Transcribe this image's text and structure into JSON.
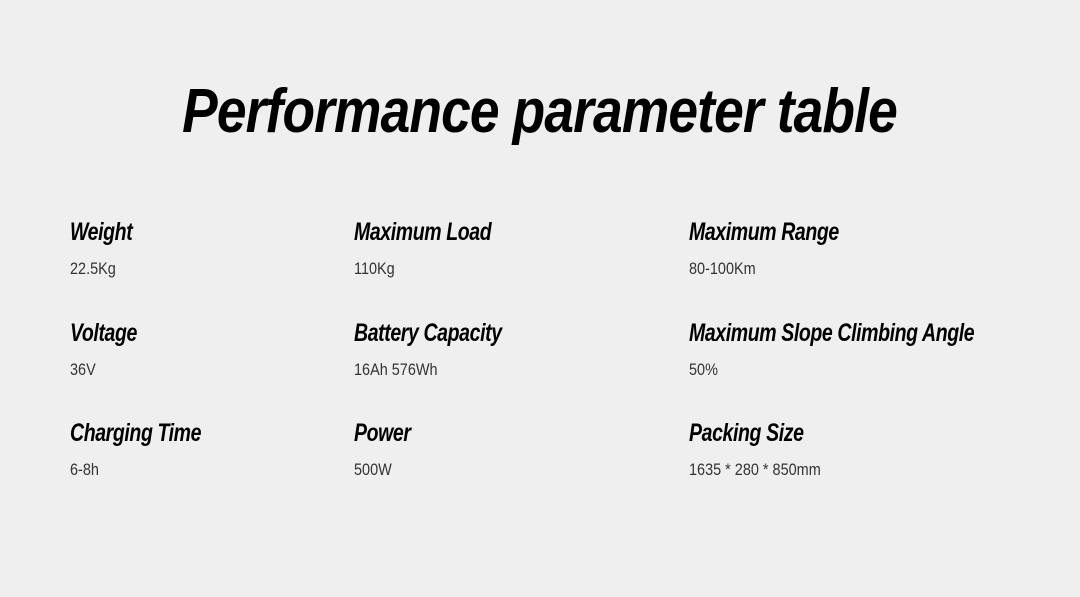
{
  "title": "Performance parameter table",
  "params": [
    {
      "label": "Weight",
      "value": "22.5Kg"
    },
    {
      "label": "Maximum Load",
      "value": "110Kg"
    },
    {
      "label": "Maximum Range",
      "value": "80-100Km"
    },
    {
      "label": "Voltage",
      "value": "36V"
    },
    {
      "label": "Battery Capacity",
      "value": "16Ah 576Wh"
    },
    {
      "label": "Maximum Slope Climbing Angle",
      "value": "50%"
    },
    {
      "label": "Charging Time",
      "value": "6-8h"
    },
    {
      "label": "Power",
      "value": "500W"
    },
    {
      "label": "Packing Size",
      "value": "1635 * 280 * 850mm"
    }
  ]
}
